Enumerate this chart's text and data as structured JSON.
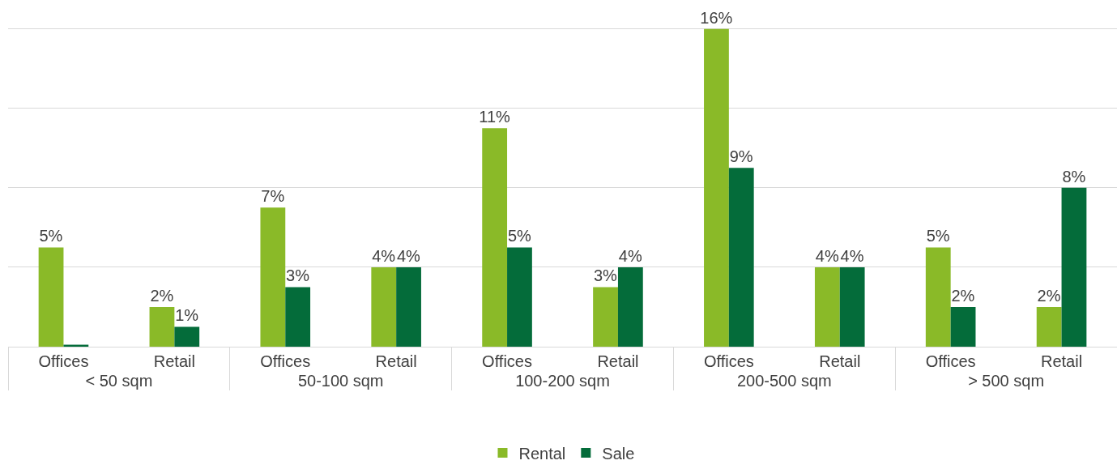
{
  "chart_data": {
    "type": "bar",
    "categories": [
      "Offices",
      "Retail",
      "Offices",
      "Retail",
      "Offices",
      "Retail",
      "Offices",
      "Retail",
      "Offices",
      "Retail"
    ],
    "annotations": [
      "< 50 sqm",
      "50-100 sqm",
      "100-200 sqm",
      "200-500 sqm",
      "> 500 sqm"
    ],
    "series": [
      {
        "name": "Rental",
        "color": "#8aba28",
        "values": [
          5,
          2,
          7,
          4,
          11,
          3,
          16,
          4,
          5,
          2
        ],
        "value_labels": [
          "5%",
          "2%",
          "7%",
          "4%",
          "11%",
          "3%",
          "16%",
          "4%",
          "5%",
          "2%"
        ]
      },
      {
        "name": "Sale",
        "color": "#046c3a",
        "values": [
          0.1,
          1,
          3,
          4,
          5,
          4,
          9,
          4,
          2,
          8
        ],
        "value_labels": [
          null,
          "1%",
          "3%",
          "4%",
          "5%",
          "4%",
          "9%",
          "4%",
          "2%",
          "8%"
        ]
      }
    ],
    "grid": "y",
    "tick_labels": "x",
    "legend": "bottom"
  }
}
